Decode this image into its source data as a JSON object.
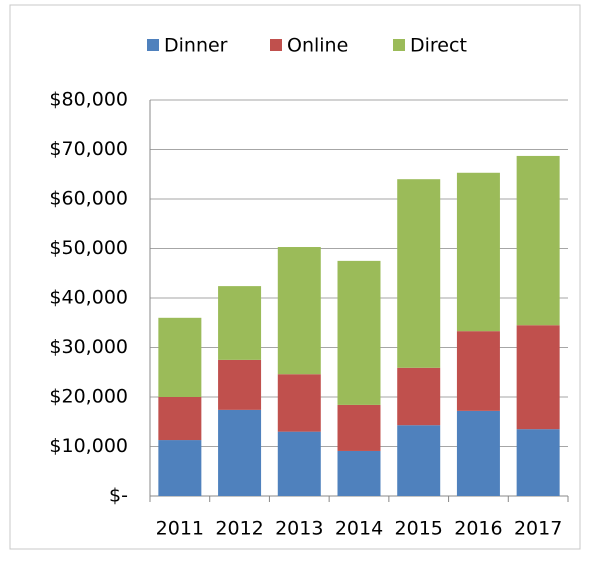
{
  "chart_data": {
    "type": "stacked_bar",
    "categories": [
      "2011",
      "2012",
      "2013",
      "2014",
      "2015",
      "2016",
      "2017"
    ],
    "series": [
      {
        "name": "Dinner",
        "color": "#4f81bd",
        "values": [
          11300,
          17400,
          13000,
          9100,
          14300,
          17200,
          13500
        ]
      },
      {
        "name": "Online",
        "color": "#c0504d",
        "values": [
          8700,
          10100,
          11600,
          9300,
          11600,
          16100,
          21000
        ]
      },
      {
        "name": "Direct",
        "color": "#9bbb59",
        "values": [
          16000,
          14900,
          25700,
          29100,
          38100,
          32000,
          34200
        ]
      }
    ],
    "ylim": [
      0,
      80000
    ],
    "yticks": [
      {
        "value": 0,
        "label": "$-"
      },
      {
        "value": 10000,
        "label": "$10,000"
      },
      {
        "value": 20000,
        "label": "$20,000"
      },
      {
        "value": 30000,
        "label": "$30,000"
      },
      {
        "value": 40000,
        "label": "$40,000"
      },
      {
        "value": 50000,
        "label": "$50,000"
      },
      {
        "value": 60000,
        "label": "$60,000"
      },
      {
        "value": 70000,
        "label": "$70,000"
      },
      {
        "value": 80000,
        "label": "$80,000"
      }
    ],
    "grid": true,
    "legend": "top"
  }
}
